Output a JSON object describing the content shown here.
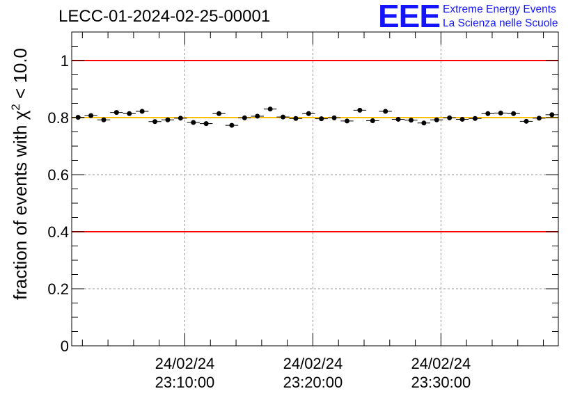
{
  "header": {
    "title": "LECC-01-2024-02-25-00001"
  },
  "logo": {
    "mark": "EEE",
    "line1": "Extreme Energy Events",
    "line2": "La Scienza nelle Scuole",
    "color": "#1414ff"
  },
  "chart_data": {
    "type": "scatter",
    "ylabel_prefix": "fraction of events with ",
    "ylabel_symbol": "χ",
    "ylabel_exp": "2",
    "ylabel_suffix": " < 10.0",
    "xlim": [
      "2024-02-24 23:01:10",
      "2024-02-24 23:39:10"
    ],
    "ylim": [
      0,
      1.1
    ],
    "grid": true,
    "y_ticks": [
      0,
      0.2,
      0.4,
      0.6,
      0.8,
      1
    ],
    "y_tick_labels": [
      "0",
      "0.2",
      "0.4",
      "0.6",
      "0.8",
      "1"
    ],
    "x_ticks": [
      "2024-02-24 23:10:00",
      "2024-02-24 23:20:00",
      "2024-02-24 23:30:00"
    ],
    "x_tick_labels": [
      {
        "date": "24/02/24",
        "time": "23:10:00"
      },
      {
        "date": "24/02/24",
        "time": "23:20:00"
      },
      {
        "date": "24/02/24",
        "time": "23:30:00"
      }
    ],
    "reference_lines": [
      {
        "y": 1.0,
        "color": "#ff0000"
      },
      {
        "y": 0.4,
        "color": "#ff0000"
      },
      {
        "y": 0.8,
        "color": "#ffc000"
      }
    ],
    "bin_width_seconds": 60,
    "series": [
      {
        "color": "#000000",
        "x": [
          "23:01:40",
          "23:02:40",
          "23:03:40",
          "23:04:40",
          "23:05:40",
          "23:06:40",
          "23:07:40",
          "23:08:40",
          "23:09:40",
          "23:10:40",
          "23:11:40",
          "23:12:40",
          "23:13:40",
          "23:14:40",
          "23:15:40",
          "23:16:40",
          "23:17:40",
          "23:18:40",
          "23:19:40",
          "23:20:40",
          "23:21:40",
          "23:22:40",
          "23:23:40",
          "23:24:40",
          "23:25:40",
          "23:26:40",
          "23:27:40",
          "23:28:40",
          "23:29:40",
          "23:30:40",
          "23:31:40",
          "23:32:40",
          "23:33:40",
          "23:34:40",
          "23:35:40",
          "23:36:40",
          "23:37:40",
          "23:38:40"
        ],
        "y": [
          0.801,
          0.807,
          0.792,
          0.818,
          0.814,
          0.822,
          0.786,
          0.792,
          0.798,
          0.783,
          0.779,
          0.814,
          0.773,
          0.799,
          0.805,
          0.83,
          0.802,
          0.797,
          0.814,
          0.796,
          0.799,
          0.788,
          0.826,
          0.789,
          0.822,
          0.794,
          0.791,
          0.781,
          0.792,
          0.799,
          0.794,
          0.797,
          0.814,
          0.816,
          0.814,
          0.787,
          0.798,
          0.81
        ],
        "y_err": 0.006
      }
    ]
  }
}
